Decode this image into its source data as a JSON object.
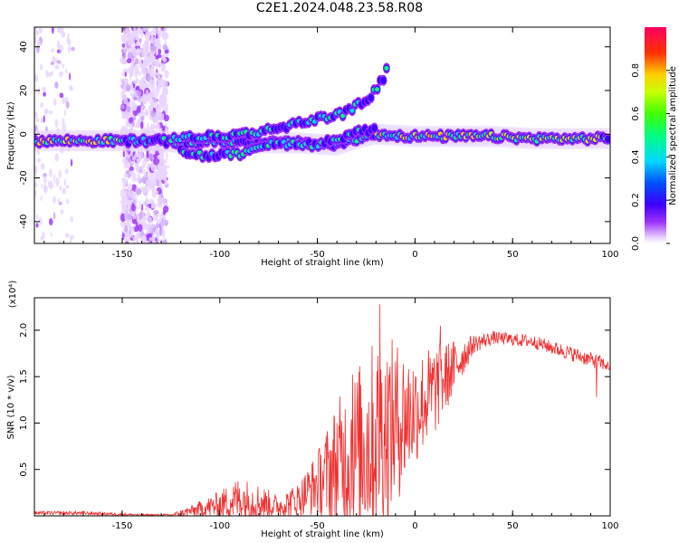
{
  "title": "C2E1.2024.048.23.58.R08",
  "chart_data": [
    {
      "type": "heatmap",
      "xlabel": "Height of straight line (km)",
      "ylabel": "Frequency (Hz)",
      "xlim": [
        -195,
        100
      ],
      "ylim": [
        -50,
        49
      ],
      "xticks": [
        -150,
        -100,
        -50,
        0,
        50,
        100
      ],
      "yticks": [
        -40,
        -20,
        0,
        20,
        40
      ],
      "colorbar": {
        "label": "Normalized spectral amplitude",
        "range": [
          0.0,
          1.0
        ],
        "ticks": [
          "0.0",
          "0.2",
          "0.4",
          "0.6",
          "0.8"
        ],
        "tick_values": [
          0.0,
          0.2,
          0.4,
          0.6,
          0.8
        ]
      },
      "traces": [
        {
          "name": "main",
          "points": [
            [
              -195,
              -3
            ],
            [
              -170,
              -3
            ],
            [
              -150,
              -3
            ],
            [
              -130,
              -3
            ],
            [
              -120,
              -4
            ],
            [
              -100,
              -3
            ],
            [
              -80,
              -4
            ],
            [
              -60,
              -4
            ],
            [
              -40,
              -5
            ],
            [
              -30,
              -2
            ],
            [
              -20,
              0
            ],
            [
              0,
              -1
            ],
            [
              20,
              -1
            ],
            [
              40,
              -1
            ],
            [
              60,
              -2
            ],
            [
              80,
              -2
            ],
            [
              95,
              -2
            ],
            [
              100,
              -2
            ]
          ]
        },
        {
          "name": "upper",
          "points": [
            [
              -125,
              -2
            ],
            [
              -100,
              -1
            ],
            [
              -80,
              1
            ],
            [
              -60,
              5
            ],
            [
              -45,
              8
            ],
            [
              -35,
              10
            ],
            [
              -28,
              14
            ],
            [
              -22,
              18
            ],
            [
              -16,
              26
            ],
            [
              -14,
              33
            ]
          ]
        },
        {
          "name": "lower",
          "points": [
            [
              -120,
              -8
            ],
            [
              -105,
              -10
            ],
            [
              -90,
              -9
            ],
            [
              -80,
              -5
            ],
            [
              -60,
              -4
            ],
            [
              -50,
              -5
            ],
            [
              -40,
              -2
            ],
            [
              -30,
              1
            ],
            [
              -20,
              2
            ]
          ]
        }
      ],
      "noise_band_x": [
        -150,
        -127
      ],
      "noise_band_left_x": [
        -195,
        -175
      ]
    },
    {
      "type": "line",
      "series": [
        {
          "color": "#f03030"
        }
      ],
      "xlabel": "Height of straight line (km)",
      "ylabel": "SNR (10 * v/v)",
      "yunit": "(x10⁴)",
      "xlim": [
        -195,
        100
      ],
      "ylim": [
        0,
        2.35
      ],
      "xticks": [
        -150,
        -100,
        -50,
        0,
        50,
        100
      ],
      "yticks": [
        0.5,
        1.0,
        1.5,
        2.0
      ],
      "envelope": [
        {
          "x": -195,
          "base": 0.03,
          "amp": 0.02
        },
        {
          "x": -170,
          "base": 0.03,
          "amp": 0.02
        },
        {
          "x": -140,
          "base": 0.01,
          "amp": 0.01
        },
        {
          "x": -125,
          "base": 0.01,
          "amp": 0.01
        },
        {
          "x": -115,
          "base": 0.05,
          "amp": 0.06
        },
        {
          "x": -100,
          "base": 0.12,
          "amp": 0.15
        },
        {
          "x": -90,
          "base": 0.18,
          "amp": 0.25
        },
        {
          "x": -80,
          "base": 0.15,
          "amp": 0.2
        },
        {
          "x": -70,
          "base": 0.1,
          "amp": 0.12
        },
        {
          "x": -60,
          "base": 0.18,
          "amp": 0.18
        },
        {
          "x": -50,
          "base": 0.35,
          "amp": 0.35
        },
        {
          "x": -40,
          "base": 0.55,
          "amp": 0.7
        },
        {
          "x": -30,
          "base": 0.7,
          "amp": 0.9
        },
        {
          "x": -20,
          "base": 0.85,
          "amp": 1.1
        },
        {
          "x": -10,
          "base": 1.0,
          "amp": 0.9
        },
        {
          "x": 0,
          "base": 1.15,
          "amp": 0.6
        },
        {
          "x": 10,
          "base": 1.35,
          "amp": 0.5
        },
        {
          "x": 20,
          "base": 1.6,
          "amp": 0.3
        },
        {
          "x": 30,
          "base": 1.85,
          "amp": 0.1
        },
        {
          "x": 40,
          "base": 1.92,
          "amp": 0.07
        },
        {
          "x": 60,
          "base": 1.88,
          "amp": 0.07
        },
        {
          "x": 80,
          "base": 1.75,
          "amp": 0.08
        },
        {
          "x": 95,
          "base": 1.65,
          "amp": 0.08
        },
        {
          "x": 100,
          "base": 1.6,
          "amp": 0.05
        }
      ],
      "peaks": [
        {
          "x": -18,
          "y": 2.28
        },
        {
          "x": 13,
          "y": 2.05
        },
        {
          "x": -32,
          "y": 1.52
        },
        {
          "x": 93,
          "y": 1.28
        }
      ]
    }
  ]
}
